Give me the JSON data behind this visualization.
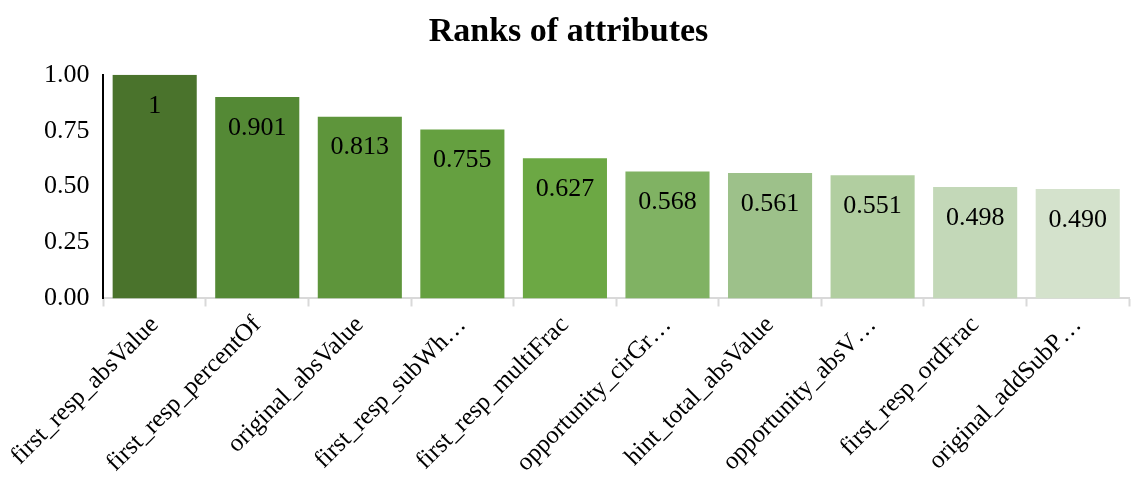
{
  "chart_data": {
    "type": "bar",
    "title": "Ranks of attributes",
    "categories": [
      "first_resp_absValue",
      "first_resp_percentOf",
      "original_absValue",
      "first_resp_subWh…",
      "first_resp_multiFrac",
      "opportunity_cirGr…",
      "hint_total_absValue",
      "opportunity_absV…",
      "first_resp_ordFrac",
      "original_addSubP…"
    ],
    "values": [
      1,
      0.901,
      0.813,
      0.755,
      0.627,
      0.568,
      0.561,
      0.551,
      0.498,
      0.49
    ],
    "value_labels": [
      "1",
      "0.901",
      "0.813",
      "0.755",
      "0.627",
      "0.568",
      "0.561",
      "0.551",
      "0.498",
      "0.490"
    ],
    "colors": [
      "#4a732c",
      "#548935",
      "#5e953b",
      "#65a040",
      "#6ca844",
      "#80b263",
      "#9dc18a",
      "#b1cea0",
      "#c3d8b8",
      "#d4e2cc"
    ],
    "ylim": [
      0,
      1
    ],
    "yticks": [
      {
        "value": 0,
        "label": "0.00"
      },
      {
        "value": 0.25,
        "label": "0.25"
      },
      {
        "value": 0.5,
        "label": "0.50"
      },
      {
        "value": 0.75,
        "label": "0.75"
      },
      {
        "value": 1,
        "label": "1.00"
      }
    ]
  }
}
